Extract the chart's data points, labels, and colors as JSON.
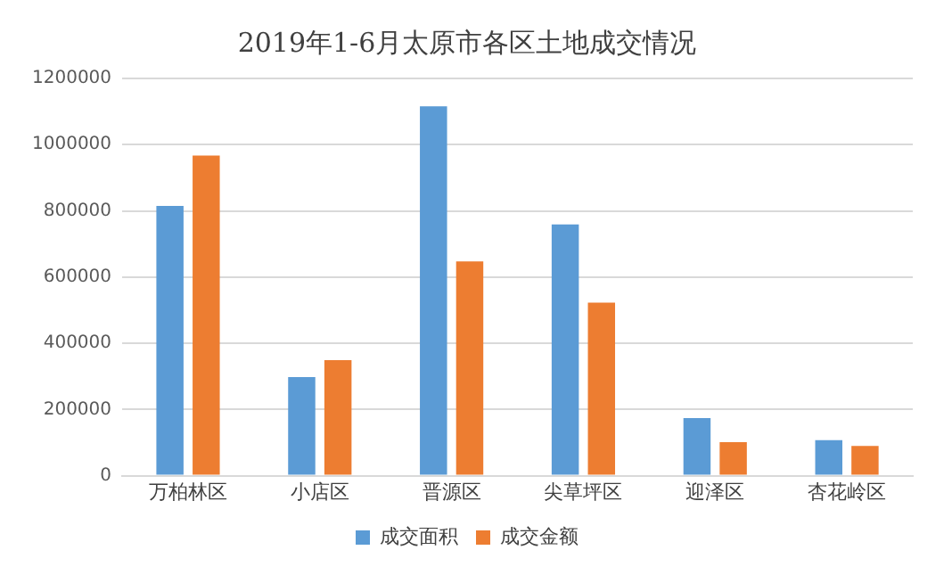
{
  "chart_data": {
    "type": "bar",
    "title": "2019年1-6月太原市各区土地成交情况",
    "categories": [
      "万柏林区",
      "小店区",
      "晋源区",
      "尖草坪区",
      "迎泽区",
      "杏花岭区"
    ],
    "series": [
      {
        "name": "成交面积",
        "color": "#5b9bd5",
        "values": [
          815000,
          298000,
          1116000,
          759000,
          174000,
          107000
        ]
      },
      {
        "name": "成交金额",
        "color": "#ed7d31",
        "values": [
          967000,
          349000,
          647000,
          523000,
          101000,
          90000
        ]
      }
    ],
    "ylim": [
      0,
      1200000
    ],
    "yticks": [
      0,
      200000,
      400000,
      600000,
      800000,
      1000000,
      1200000
    ],
    "grid": "y",
    "legend": "bottom"
  }
}
